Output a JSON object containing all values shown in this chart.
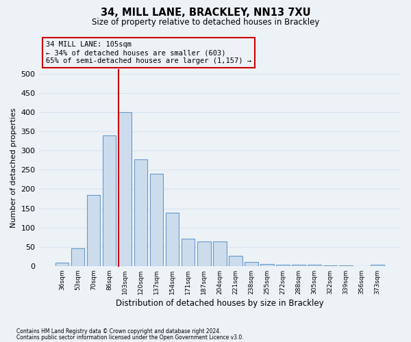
{
  "title1": "34, MILL LANE, BRACKLEY, NN13 7XU",
  "title2": "Size of property relative to detached houses in Brackley",
  "xlabel": "Distribution of detached houses by size in Brackley",
  "ylabel": "Number of detached properties",
  "footnote1": "Contains HM Land Registry data © Crown copyright and database right 2024.",
  "footnote2": "Contains public sector information licensed under the Open Government Licence v3.0.",
  "bar_color": "#ccdcec",
  "bar_edge_color": "#6699cc",
  "background_color": "#edf2f7",
  "grid_color": "#d8e4f0",
  "annotation_line_color": "#cc0000",
  "annotation_box_line_color": "#cc0000",
  "annotation_text_line1": "34 MILL LANE: 105sqm",
  "annotation_text_line2": "← 34% of detached houses are smaller (603)",
  "annotation_text_line3": "65% of semi-detached houses are larger (1,157) →",
  "property_bin_index": 4,
  "categories": [
    "36sqm",
    "53sqm",
    "70sqm",
    "86sqm",
    "103sqm",
    "120sqm",
    "137sqm",
    "154sqm",
    "171sqm",
    "187sqm",
    "204sqm",
    "221sqm",
    "238sqm",
    "255sqm",
    "272sqm",
    "288sqm",
    "305sqm",
    "322sqm",
    "339sqm",
    "356sqm",
    "373sqm"
  ],
  "values": [
    8,
    46,
    185,
    340,
    400,
    278,
    240,
    138,
    70,
    63,
    63,
    26,
    10,
    5,
    4,
    3,
    3,
    2,
    1,
    0,
    3
  ],
  "ylim": [
    0,
    510
  ],
  "yticks": [
    0,
    50,
    100,
    150,
    200,
    250,
    300,
    350,
    400,
    450,
    500
  ]
}
